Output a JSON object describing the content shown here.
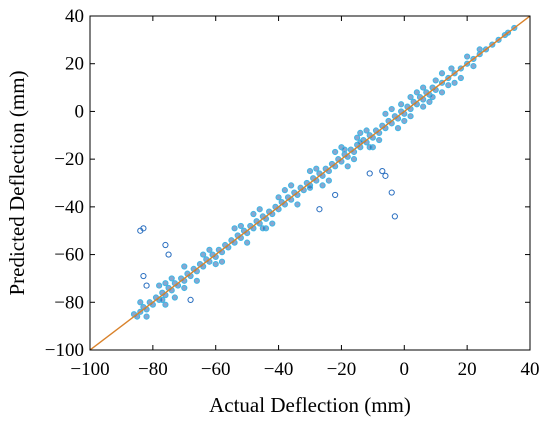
{
  "chart_data": {
    "type": "scatter",
    "title": "",
    "xlabel": "Actual Deflection (mm)",
    "ylabel": "Predicted Deflection (mm)",
    "xlim": [
      -100,
      40
    ],
    "ylim": [
      -100,
      40
    ],
    "x_ticks": [
      -100,
      -80,
      -60,
      -40,
      -20,
      0,
      20,
      40
    ],
    "y_ticks": [
      -100,
      -80,
      -60,
      -40,
      -20,
      0,
      20,
      40
    ],
    "x_tick_labels": [
      "−100",
      "−80",
      "−60",
      "−40",
      "−20",
      "0",
      "20",
      "40"
    ],
    "y_tick_labels": [
      "−100",
      "−80",
      "−60",
      "−40",
      "−20",
      "0",
      "20",
      "40"
    ],
    "grid": false,
    "legend": false,
    "reference_line": {
      "from": [
        -100,
        -100
      ],
      "to": [
        40,
        40
      ],
      "color": "#d9822b"
    },
    "colors": {
      "marker_fill": "#2a5ca8",
      "marker_edge": "#3fb8e6",
      "outlier_edge": "#2a6fc0"
    },
    "points_note_free": true,
    "points": [
      [
        -86,
        -85
      ],
      [
        -85,
        -86
      ],
      [
        -84,
        -84
      ],
      [
        -83,
        -82
      ],
      [
        -82,
        -83
      ],
      [
        -81,
        -80
      ],
      [
        -80,
        -81
      ],
      [
        -79,
        -78
      ],
      [
        -78,
        -79
      ],
      [
        -77,
        -76
      ],
      [
        -76,
        -77
      ],
      [
        -75,
        -74
      ],
      [
        -74,
        -75
      ],
      [
        -73,
        -72
      ],
      [
        -72,
        -73
      ],
      [
        -71,
        -70
      ],
      [
        -70,
        -71
      ],
      [
        -69,
        -68
      ],
      [
        -68,
        -69
      ],
      [
        -67,
        -66
      ],
      [
        -66,
        -67
      ],
      [
        -65,
        -64
      ],
      [
        -64,
        -65
      ],
      [
        -63,
        -62
      ],
      [
        -62,
        -63
      ],
      [
        -61,
        -60
      ],
      [
        -60,
        -61
      ],
      [
        -59,
        -58
      ],
      [
        -58,
        -59
      ],
      [
        -57,
        -56
      ],
      [
        -56,
        -57
      ],
      [
        -55,
        -54
      ],
      [
        -54,
        -55
      ],
      [
        -53,
        -52
      ],
      [
        -52,
        -53
      ],
      [
        -51,
        -50
      ],
      [
        -50,
        -51
      ],
      [
        -49,
        -48
      ],
      [
        -48,
        -49
      ],
      [
        -47,
        -46
      ],
      [
        -46,
        -47
      ],
      [
        -45,
        -44
      ],
      [
        -44,
        -45
      ],
      [
        -43,
        -42
      ],
      [
        -42,
        -43
      ],
      [
        -41,
        -40
      ],
      [
        -40,
        -41
      ],
      [
        -39,
        -38
      ],
      [
        -38,
        -39
      ],
      [
        -37,
        -36
      ],
      [
        -36,
        -37
      ],
      [
        -35,
        -34
      ],
      [
        -34,
        -35
      ],
      [
        -33,
        -32
      ],
      [
        -32,
        -33
      ],
      [
        -31,
        -30
      ],
      [
        -30,
        -31
      ],
      [
        -29,
        -28
      ],
      [
        -28,
        -29
      ],
      [
        -27,
        -26
      ],
      [
        -26,
        -27
      ],
      [
        -25,
        -24
      ],
      [
        -24,
        -25
      ],
      [
        -23,
        -22
      ],
      [
        -22,
        -23
      ],
      [
        -21,
        -20
      ],
      [
        -20,
        -21
      ],
      [
        -19,
        -18
      ],
      [
        -18,
        -19
      ],
      [
        -17,
        -16
      ],
      [
        -16,
        -17
      ],
      [
        -15,
        -14
      ],
      [
        -14,
        -15
      ],
      [
        -13,
        -12
      ],
      [
        -12,
        -13
      ],
      [
        -11,
        -10
      ],
      [
        -10,
        -11
      ],
      [
        -9,
        -8
      ],
      [
        -8,
        -9
      ],
      [
        -7,
        -6
      ],
      [
        -6,
        -7
      ],
      [
        -5,
        -4
      ],
      [
        -4,
        -5
      ],
      [
        -3,
        -2
      ],
      [
        -2,
        -3
      ],
      [
        -1,
        0
      ],
      [
        0,
        -1
      ],
      [
        1,
        2
      ],
      [
        2,
        1
      ],
      [
        3,
        4
      ],
      [
        4,
        3
      ],
      [
        5,
        6
      ],
      [
        6,
        5
      ],
      [
        7,
        8
      ],
      [
        8,
        7
      ],
      [
        9,
        10
      ],
      [
        10,
        9
      ],
      [
        12,
        12
      ],
      [
        14,
        14
      ],
      [
        16,
        16
      ],
      [
        18,
        18
      ],
      [
        20,
        20
      ],
      [
        22,
        22
      ],
      [
        24,
        24
      ],
      [
        26,
        26
      ],
      [
        28,
        28
      ],
      [
        30,
        30
      ],
      [
        32,
        32
      ],
      [
        33,
        33
      ],
      [
        35,
        35
      ],
      [
        -84,
        -80
      ],
      [
        -82,
        -86
      ],
      [
        -78,
        -73
      ],
      [
        -76,
        -81
      ],
      [
        -70,
        -65
      ],
      [
        -66,
        -71
      ],
      [
        -62,
        -58
      ],
      [
        -58,
        -63
      ],
      [
        -54,
        -49
      ],
      [
        -50,
        -55
      ],
      [
        -46,
        -41
      ],
      [
        -42,
        -47
      ],
      [
        -38,
        -33
      ],
      [
        -34,
        -39
      ],
      [
        -30,
        -25
      ],
      [
        -26,
        -31
      ],
      [
        -22,
        -17
      ],
      [
        -18,
        -23
      ],
      [
        -14,
        -9
      ],
      [
        -10,
        -15
      ],
      [
        -6,
        -1
      ],
      [
        -2,
        -7
      ],
      [
        2,
        6
      ],
      [
        6,
        2
      ],
      [
        10,
        13
      ],
      [
        14,
        11
      ],
      [
        -48,
        -43
      ],
      [
        -44,
        -49
      ],
      [
        -28,
        -24
      ],
      [
        -24,
        -29
      ],
      [
        -20,
        -15
      ],
      [
        -16,
        -20
      ],
      [
        -12,
        -8
      ],
      [
        -8,
        -12
      ],
      [
        -4,
        1
      ],
      [
        0,
        -4
      ],
      [
        4,
        8
      ],
      [
        8,
        4
      ],
      [
        12,
        16
      ],
      [
        16,
        12
      ],
      [
        -83,
        -49
      ],
      [
        -84,
        -50
      ],
      [
        -76,
        -56
      ],
      [
        -75,
        -60
      ],
      [
        -83,
        -69
      ],
      [
        -82,
        -73
      ],
      [
        -77,
        -79
      ],
      [
        -73,
        -78
      ],
      [
        -68,
        -79
      ],
      [
        -76,
        -72
      ],
      [
        -4,
        -34
      ],
      [
        -3,
        -44
      ],
      [
        -11,
        -26
      ],
      [
        -7,
        -25
      ],
      [
        -6,
        -27
      ],
      [
        -22,
        -35
      ],
      [
        -27,
        -41
      ],
      [
        -30,
        -32
      ],
      [
        -19,
        -16
      ],
      [
        -14,
        -13
      ],
      [
        -36,
        -31
      ],
      [
        -40,
        -36
      ],
      [
        -45,
        -49
      ],
      [
        -52,
        -48
      ],
      [
        -60,
        -64
      ],
      [
        -64,
        -60
      ],
      [
        -70,
        -74
      ],
      [
        -74,
        -70
      ],
      [
        -15,
        -11
      ],
      [
        -11,
        -15
      ],
      [
        2,
        -2
      ],
      [
        -1,
        3
      ],
      [
        6,
        10
      ],
      [
        9,
        6
      ],
      [
        12,
        8
      ],
      [
        15,
        18
      ],
      [
        18,
        14
      ],
      [
        20,
        23
      ],
      [
        22,
        19
      ],
      [
        24,
        26
      ]
    ]
  }
}
